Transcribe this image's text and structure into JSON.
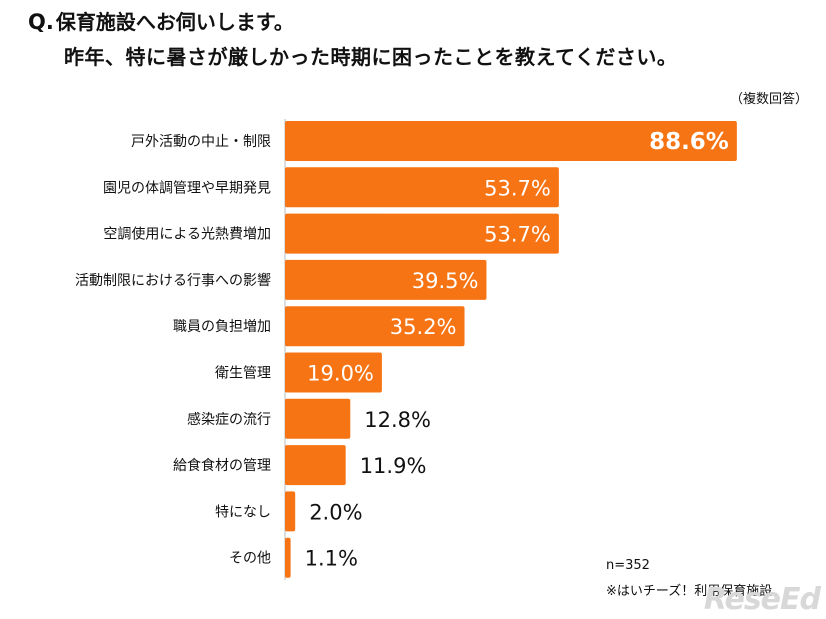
{
  "header": {
    "q_prefix": "Q.",
    "line1": "保育施設へお伺いします。",
    "line2": "昨年、特に暑さが厳しかった時期に困ったことを教えてください。",
    "note": "（複数回答）"
  },
  "footer": {
    "n": "n=352",
    "source": "※はいチーズ！利用保育施設"
  },
  "watermark": "ReseEd",
  "colors": {
    "bar": "#f77414",
    "label_inside": "#ffffff",
    "label_outside": "#111111"
  },
  "chart_data": {
    "type": "bar",
    "orientation": "horizontal",
    "categories": [
      "戸外活動の中止・制限",
      "園児の体調管理や早期発見",
      "空調使用による光熱費増加",
      "活動制限における行事への影響",
      "職員の負担増加",
      "衛生管理",
      "感染症の流行",
      "給食食材の管理",
      "特になし",
      "その他"
    ],
    "values": [
      88.6,
      53.7,
      53.7,
      39.5,
      35.2,
      19.0,
      12.8,
      11.9,
      2.0,
      1.1
    ],
    "value_labels": [
      "88.6%",
      "53.7%",
      "53.7%",
      "39.5%",
      "35.2%",
      "19.0%",
      "12.8%",
      "11.9%",
      "2.0%",
      "1.1%"
    ],
    "unit": "%",
    "xlim": [
      0,
      100
    ]
  }
}
